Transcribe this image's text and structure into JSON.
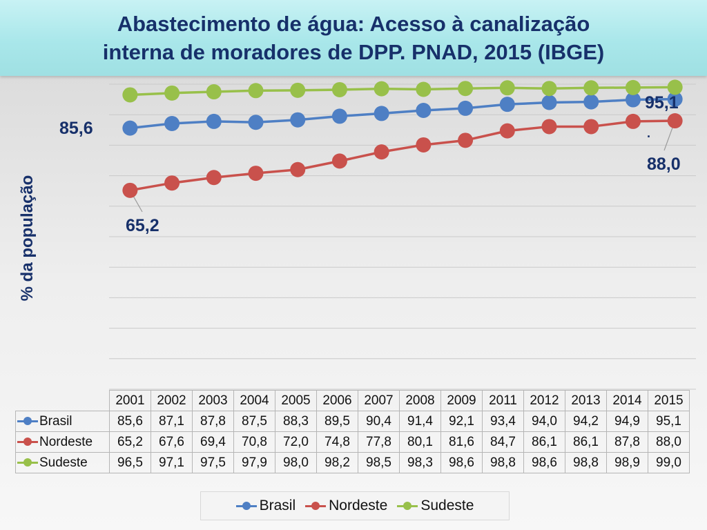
{
  "header": {
    "title_line1": "Abastecimento de água: Acesso à canalização",
    "title_line2": "interna de moradores de DPP. PNAD, 2015 (IBGE)"
  },
  "chart_data": {
    "type": "line",
    "title": "Abastecimento de água: Acesso à canalização interna de moradores de DPP. PNAD, 2015 (IBGE)",
    "ylabel": "% da população",
    "categories": [
      "2001",
      "2002",
      "2003",
      "2004",
      "2005",
      "2006",
      "2007",
      "2008",
      "2009",
      "2011",
      "2012",
      "2013",
      "2014",
      "2015"
    ],
    "series": [
      {
        "name": "Brasil",
        "color": "#4e7fc4",
        "values": [
          85.6,
          87.1,
          87.8,
          87.5,
          88.3,
          89.5,
          90.4,
          91.4,
          92.1,
          93.4,
          94.0,
          94.2,
          94.9,
          95.1
        ],
        "display": [
          "85,6",
          "87,1",
          "87,8",
          "87,5",
          "88,3",
          "89,5",
          "90,4",
          "91,4",
          "92,1",
          "93,4",
          "94,0",
          "94,2",
          "94,9",
          "95,1"
        ]
      },
      {
        "name": "Nordeste",
        "color": "#c9514c",
        "values": [
          65.2,
          67.6,
          69.4,
          70.8,
          72.0,
          74.8,
          77.8,
          80.1,
          81.6,
          84.7,
          86.1,
          86.1,
          87.8,
          88.0
        ],
        "display": [
          "65,2",
          "67,6",
          "69,4",
          "70,8",
          "72,0",
          "74,8",
          "77,8",
          "80,1",
          "81,6",
          "84,7",
          "86,1",
          "86,1",
          "87,8",
          "88,0"
        ]
      },
      {
        "name": "Sudeste",
        "color": "#98c04a",
        "values": [
          96.5,
          97.1,
          97.5,
          97.9,
          98.0,
          98.2,
          98.5,
          98.3,
          98.6,
          98.8,
          98.6,
          98.8,
          98.9,
          99.0
        ],
        "display": [
          "96,5",
          "97,1",
          "97,5",
          "97,9",
          "98,0",
          "98,2",
          "98,5",
          "98,3",
          "98,6",
          "98,8",
          "98,6",
          "98,8",
          "98,9",
          "99,0"
        ]
      }
    ],
    "ylim": [
      0,
      100
    ],
    "grid": true,
    "legend": "bottom",
    "annotations": [
      "85,6",
      "65,2",
      "95,1",
      "88,0"
    ],
    "annotation_dot": "."
  }
}
